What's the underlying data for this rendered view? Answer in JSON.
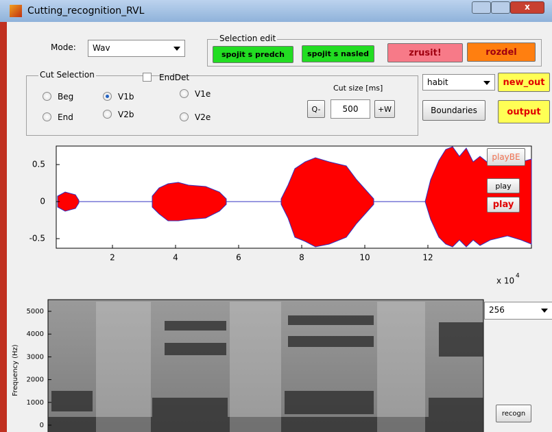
{
  "window": {
    "title": "Cutting_recognition_RVL"
  },
  "mode": {
    "label": "Mode:",
    "value": "Wav"
  },
  "selection_edit": {
    "title": "Selection edit",
    "buttons": [
      "spojit s predch",
      "spojit s nasled",
      "zrusit!",
      "rozdel"
    ]
  },
  "cut_selection": {
    "title": "Cut Selection",
    "enddet": "EndDet",
    "radios": [
      {
        "label": "Beg",
        "checked": false
      },
      {
        "label": "V1b",
        "checked": true
      },
      {
        "label": "V1e",
        "checked": false
      },
      {
        "label": "End",
        "checked": false
      },
      {
        "label": "V2b",
        "checked": false
      },
      {
        "label": "V2e",
        "checked": false
      }
    ]
  },
  "cut_size": {
    "label": "Cut size [ms]",
    "minus": "Q-",
    "value": 500,
    "plus": "+W"
  },
  "right_panel": {
    "dropdown": "habit",
    "new_out": "new_out",
    "boundaries": "Boundaries",
    "output": "output"
  },
  "waveform": {
    "yticks": [
      0.5,
      0,
      -0.5
    ],
    "xticks": [
      2,
      4,
      6,
      8,
      10,
      12
    ],
    "x_scale": "x 10",
    "x_exponent": "4",
    "buttons": [
      "playBE",
      "play",
      "play"
    ]
  },
  "spectrogram": {
    "ylabel": "Frequency (Hz)",
    "yticks": [
      0,
      1000,
      2000,
      3000,
      4000,
      5000
    ],
    "window_size": "256",
    "recogn": "recogn"
  }
}
